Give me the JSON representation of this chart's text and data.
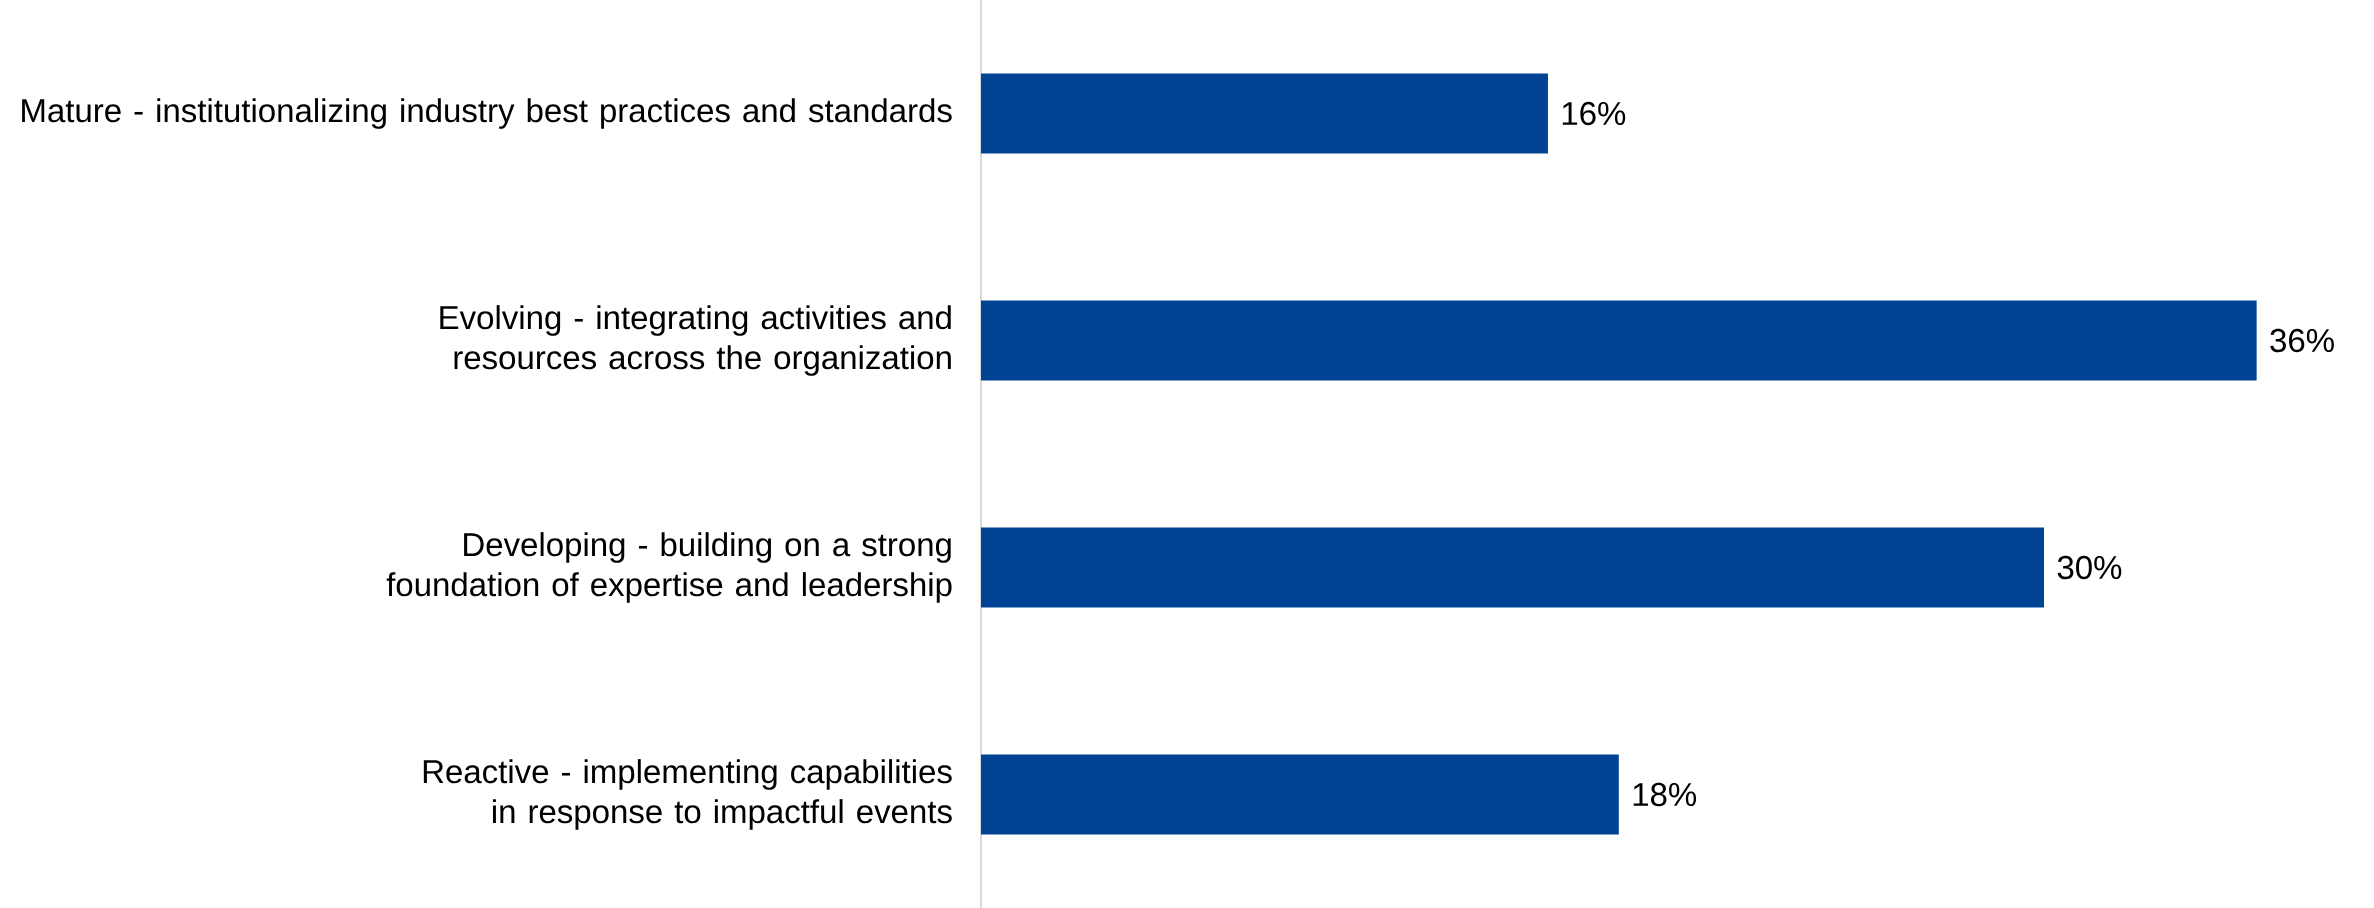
{
  "chart_data": {
    "type": "bar",
    "orientation": "horizontal",
    "categories": [
      "Mature - institutionalizing industry best practices and standards",
      "Evolving - integrating activities and resources across the organization",
      "Developing - building on a strong foundation of expertise and leadership",
      "Reactive - implementing capabilities in response to impactful events"
    ],
    "values": [
      16,
      36,
      30,
      18
    ],
    "value_labels": [
      "16%",
      "36%",
      "30%",
      "18%"
    ],
    "color": "#004293",
    "tick_labels": "y"
  }
}
